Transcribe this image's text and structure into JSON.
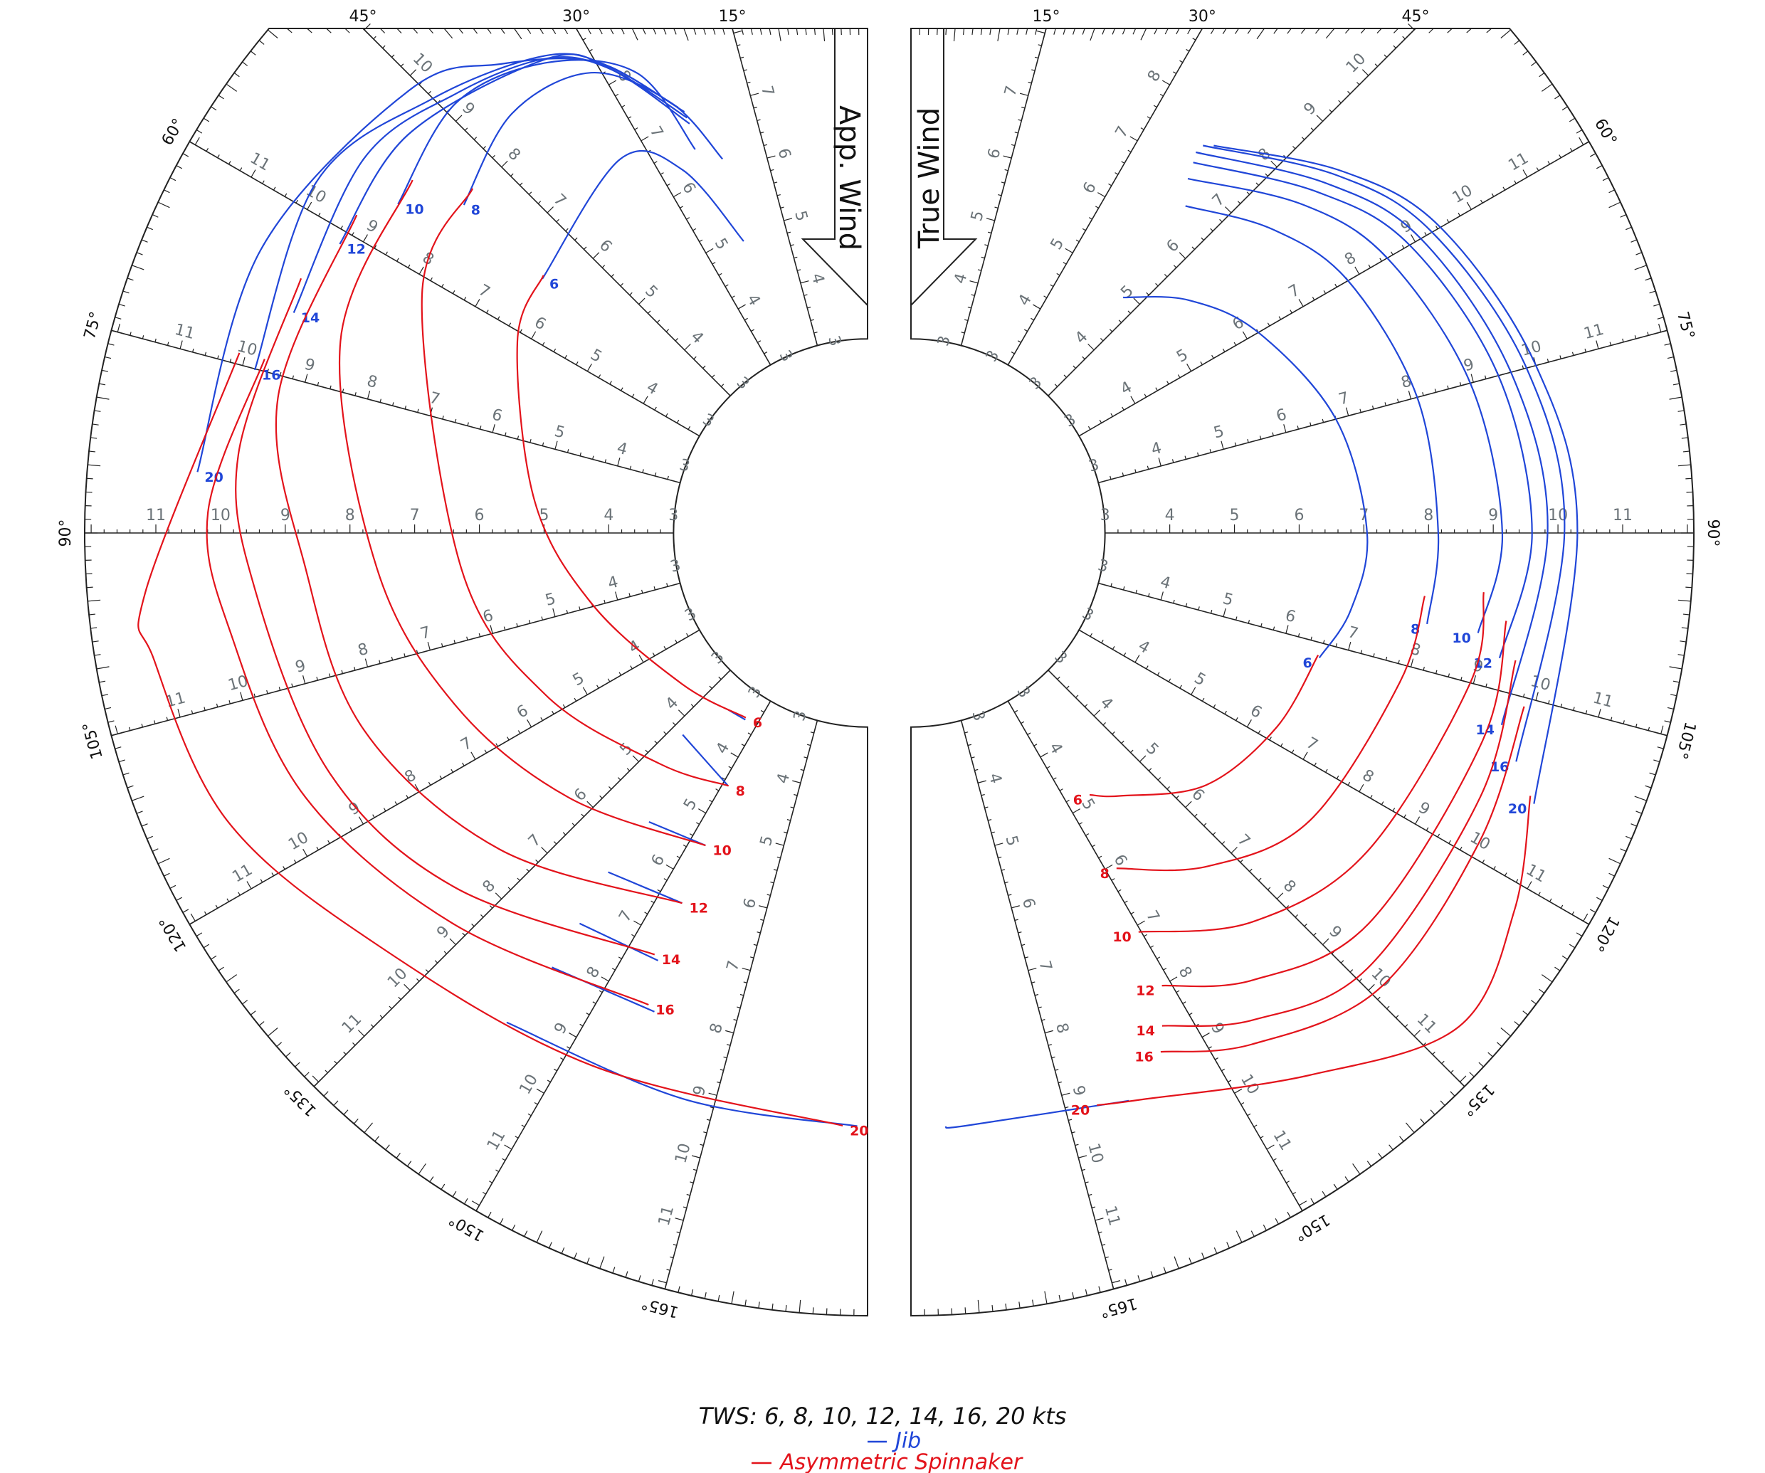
{
  "chart_data": {
    "type": "polar",
    "title": "TWS: 6, 8, 10, 12, 14, 16, 20 kts",
    "panels": [
      "App. Wind",
      "True Wind"
    ],
    "rlim": [
      0,
      12.1
    ],
    "anglelim": [
      0,
      180
    ],
    "angle_ticks": [
      {
        "value": 15,
        "label": "15°"
      },
      {
        "value": 30,
        "label": "30°"
      },
      {
        "value": 45,
        "label": "45°"
      },
      {
        "value": 60,
        "label": "60°"
      },
      {
        "value": 75,
        "label": "75°"
      },
      {
        "value": 90,
        "label": "90°"
      },
      {
        "value": 105,
        "label": "105°"
      },
      {
        "value": 120,
        "label": "120°"
      },
      {
        "value": 135,
        "label": "135°"
      },
      {
        "value": 150,
        "label": "150°"
      },
      {
        "value": 165,
        "label": "165°"
      }
    ],
    "speed_ticks": [
      3,
      4,
      5,
      6,
      7,
      8,
      9,
      10,
      11
    ],
    "series": [
      {
        "name": "Jib",
        "color": "#2046d8",
        "panels": [
          {
            "curves": [
              {
                "label": 6,
                "angle": [
                  141.8,
                  146.8,
                  null,
                  23,
                  27,
                  33.5,
                  52
                ],
                "speed": [
                  3.48,
                  3.45,
                  null,
                  4.9,
                  6.3,
                  6.93,
                  6.38
                ]
              },
              {
                "label": 8,
                "angle": [
                  137.5,
                  151,
                  null,
                  21.2,
                  24.5,
                  31,
                  40.3,
                  50.9
                ],
                "speed": [
                  4.23,
                  4.46,
                  null,
                  6.2,
                  7.3,
                  8.3,
                  8.5,
                  8.04
                ]
              },
              {
                "label": 10,
                "angle": [
                  142.9,
                  152.6,
                  null,
                  24.2,
                  26.6,
                  34.3,
                  43.8,
                  55
                ],
                "speed": [
                  5.6,
                  5.44,
                  null,
                  6.5,
                  7.95,
                  8.8,
                  9.2,
                  8.86
                ]
              },
              {
                "label": 12,
                "angle": [
                  142.6,
                  153.4,
                  null,
                  23.5,
                  29,
                  34.1,
                  49.1,
                  61.3
                ],
                "speed": [
                  6.6,
                  6.4,
                  null,
                  6.9,
                  8.2,
                  8.85,
                  9.4,
                  9.3
                ]
              },
              {
                "label": 14,
                "angle": [
                  143.6,
                  153.9,
                  null,
                  23.5,
                  29,
                  34,
                  43,
                  53.4,
                  69
                ],
                "speed": [
                  7.5,
                  7.36,
                  null,
                  7.0,
                  8.2,
                  8.85,
                  9.3,
                  9.7,
                  9.5
                ]
              },
              {
                "label": 16,
                "angle": [
                  144,
                  156,
                  null,
                  23.5,
                  29,
                  34,
                  45,
                  57.4,
                  75.1
                ],
                "speed": [
                  8.3,
                  8.1,
                  null,
                  7.1,
                  8.25,
                  8.9,
                  9.5,
                  10.1,
                  9.8
                ]
              },
              {
                "label": 20,
                "angle": [
                  143.6,
                  162,
                  179,
                  null,
                  24,
                  30,
                  38,
                  46,
                  65,
                  84.8
                ],
                "speed": [
                  9.4,
                  9.2,
                  9.17,
                  null,
                  7.2,
                  8.4,
                  9.2,
                  9.85,
                  10.35,
                  10.4
                ]
              }
            ]
          },
          {
            "curves": [
              {
                "label": 6,
                "angle": [
                  42,
                  50,
                  60,
                  75,
                  90,
                  100,
                  107
                ],
                "speed": [
                  4.9,
                  5.6,
                  6.2,
                  6.8,
                  7.05,
                  6.9,
                  6.6
                ]
              },
              {
                "label": 8,
                "angle": [
                  40,
                  50,
                  60,
                  75,
                  90,
                  100
                ],
                "speed": [
                  6.6,
                  7.3,
                  7.8,
                  8.1,
                  8.15,
                  8.1
                ]
              },
              {
                "label": 10,
                "angle": [
                  38,
                  50,
                  60,
                  75,
                  90,
                  100
                ],
                "speed": [
                  6.95,
                  7.9,
                  8.5,
                  8.95,
                  9.14,
                  8.9
                ]
              },
              {
                "label": 12,
                "angle": [
                  37.3,
                  50,
                  60,
                  75,
                  90,
                  102
                ],
                "speed": [
                  7.2,
                  8.2,
                  8.9,
                  9.4,
                  9.6,
                  9.3
                ]
              },
              {
                "label": 14,
                "angle": [
                  36.8,
                  50,
                  60,
                  75,
                  90,
                  108
                ],
                "speed": [
                  7.35,
                  8.4,
                  9.1,
                  9.6,
                  9.84,
                  9.6
                ]
              },
              {
                "label": 16,
                "angle": [
                  37,
                  50,
                  60,
                  75,
                  90,
                  110.7
                ],
                "speed": [
                  7.5,
                  8.6,
                  9.3,
                  9.85,
                  10.1,
                  10.0
                ]
              },
              {
                "label": 20,
                "angle": [
                  159,
                  174.5,
                  176.7,
                  null,
                  38,
                  50,
                  60,
                  75,
                  90,
                  113.5
                ],
                "speed": [
                  9.4,
                  9.2,
                  9.2,
                  null,
                  7.6,
                  8.7,
                  9.45,
                  10.0,
                  10.3,
                  10.5
                ]
              }
            ]
          }
        ]
      },
      {
        "name": "Asymmetric Spinnaker",
        "color": "#e3131b",
        "panels": [
          {
            "curves": [
              {
                "label": 6,
                "angle": [
                  51.5,
                  61.3,
                  84.5,
                  104.4,
                  129,
                  146.6
                ],
                "speed": [
                  6.4,
                  6.17,
                  5.17,
                  4.4,
                  3.7,
                  3.42
                ]
              },
              {
                "label": 8,
                "angle": [
                  48.9,
                  62,
                  95.1,
                  116.7,
                  138,
                  151.2
                ],
                "speed": [
                  8.1,
                  7.8,
                  6.3,
                  5.57,
                  4.8,
                  4.46
                ]
              },
              {
                "label": 10,
                "angle": [
                  52.2,
                  70,
                  94.2,
                  112.8,
                  131.5,
                  152.6
                ],
                "speed": [
                  8.9,
                  8.67,
                  7.6,
                  6.9,
                  6.17,
                  5.44
                ]
              },
              {
                "label": 12,
                "angle": [
                  58.1,
                  77.1,
                  93.7,
                  111.3,
                  130.7,
                  153.4
                ],
                "speed": [
                  9.3,
                  9.35,
                  8.7,
                  8.36,
                  7.5,
                  6.4
                ]
              },
              {
                "label": 14,
                "angle": [
                  65.8,
                  82.9,
                  95.5,
                  114.2,
                  130.8,
                  153.2
                ],
                "speed": [
                  9.6,
                  9.8,
                  9.5,
                  9.1,
                  8.4,
                  7.3
                ]
              },
              {
                "label": 16,
                "angle": [
                  73.9,
                  88.2,
                  99.4,
                  115.2,
                  133.4,
                  155.1
                ],
                "speed": [
                  9.7,
                  10.2,
                  9.95,
                  9.6,
                  8.8,
                  8.04
                ]
              },
              {
                "label": 20,
                "angle": [
                  74,
                  94.7,
                  100.1,
                  114.2,
                  130,
                  152.6,
                  177.6
                ],
                "speed": [
                  10.1,
                  11.2,
                  11.2,
                  10.85,
                  9.9,
                  9.27,
                  9.17
                ]
              }
            ]
          },
          {
            "curves": [
              {
                "label": 6,
                "angle": [
                  106.7,
                  118,
                  130.5,
                  141.4,
                  145.7
                ],
                "speed": [
                  6.57,
                  6.4,
                  6.0,
                  5.2,
                  4.9
                ]
              },
              {
                "label": 8,
                "angle": [
                  97,
                  107,
                  125.8,
                  138.3,
                  148.5
                ],
                "speed": [
                  8.0,
                  7.9,
                  7.6,
                  6.9,
                  6.08
                ]
              },
              {
                "label": 10,
                "angle": [
                  95.9,
                  105,
                  125,
                  138.7,
                  150.3
                ],
                "speed": [
                  8.9,
                  8.95,
                  8.6,
                  8.0,
                  7.1
                ]
              },
              {
                "label": 12,
                "angle": [
                  98.4,
                  110,
                  130.5,
                  142.6,
                  151
                ],
                "speed": [
                  9.3,
                  9.4,
                  9.3,
                  8.7,
                  8.0
                ]
              },
              {
                "label": 14,
                "angle": [
                  101.9,
                  114.9,
                  133.7,
                  144.9,
                  153
                ],
                "speed": [
                  9.55,
                  9.7,
                  9.75,
                  9.2,
                  8.55
                ]
              },
              {
                "label": 16,
                "angle": [
                  105.8,
                  118.5,
                  134.2,
                  146.3,
                  154.3
                ],
                "speed": [
                  9.85,
                  10.0,
                  10.1,
                  9.5,
                  8.9
                ]
              },
              {
                "label": 20,
                "angle": [
                  113,
                  122,
                  132,
                  143.7,
                  158,
                  162
                ],
                "speed": [
                  10.4,
                  11.0,
                  11.4,
                  10.4,
                  9.45,
                  9.3
                ]
              }
            ]
          }
        ]
      }
    ]
  }
}
